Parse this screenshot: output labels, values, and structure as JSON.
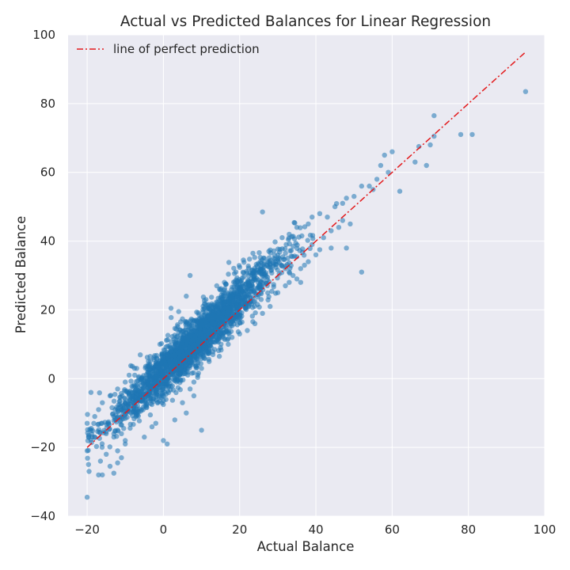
{
  "chart_data": {
    "type": "scatter",
    "title": "Actual vs Predicted Balances for Linear Regression",
    "xlabel": "Actual Balance",
    "ylabel": "Predicted Balance",
    "xlim": [
      -25,
      100
    ],
    "ylim": [
      -40,
      100
    ],
    "x_ticks": [
      -20,
      0,
      20,
      40,
      60,
      80,
      100
    ],
    "y_ticks": [
      -40,
      -20,
      0,
      20,
      40,
      60,
      80,
      100
    ],
    "x_tick_labels": [
      "−20",
      "0",
      "20",
      "40",
      "60",
      "80",
      "100"
    ],
    "y_tick_labels": [
      "−40",
      "−20",
      "0",
      "20",
      "40",
      "60",
      "80",
      "100"
    ],
    "grid": true,
    "background": "#eaeaf2",
    "legend": {
      "placement": "top-left",
      "entries": [
        "line of perfect prediction"
      ]
    },
    "series": [
      {
        "kind": "scatter",
        "color": "#1f77b4",
        "alpha": 0.55,
        "points": [
          [
            -20,
            -34.5
          ],
          [
            -19.5,
            -27
          ],
          [
            -16,
            -28
          ],
          [
            -17,
            -28
          ],
          [
            -14,
            -25.5
          ],
          [
            -13,
            -27.5
          ],
          [
            -12,
            -24.5
          ],
          [
            -11,
            -23
          ],
          [
            -16.5,
            -24
          ],
          [
            -15,
            -22
          ],
          [
            -12,
            -21
          ],
          [
            -10,
            -19
          ],
          [
            -19,
            -4
          ],
          [
            -20,
            -13
          ],
          [
            -18,
            -11
          ],
          [
            -17,
            -9
          ],
          [
            -16,
            -7
          ],
          [
            -14,
            -5
          ],
          [
            -12,
            -3
          ],
          [
            -10,
            -1
          ],
          [
            -9,
            1
          ],
          [
            -7,
            3
          ],
          [
            -20,
            -21
          ],
          [
            -18,
            -17
          ],
          [
            -15,
            -16
          ],
          [
            -10,
            -18
          ],
          [
            -5,
            -17
          ],
          [
            0,
            -18
          ],
          [
            1,
            -19
          ],
          [
            10,
            -15
          ],
          [
            5,
            -7
          ],
          [
            8,
            -5
          ],
          [
            6,
            -10
          ],
          [
            -3,
            -14
          ],
          [
            -2,
            -13
          ],
          [
            3,
            -12
          ],
          [
            -12,
            -15
          ],
          [
            -13,
            -17
          ],
          [
            -11,
            -16
          ],
          [
            2,
            20.5
          ],
          [
            4,
            19.5
          ],
          [
            6,
            24
          ],
          [
            7,
            30
          ],
          [
            11,
            19
          ],
          [
            14,
            27
          ],
          [
            16,
            28
          ],
          [
            19,
            31
          ],
          [
            21,
            34.5
          ],
          [
            26,
            48.5
          ],
          [
            28,
            33
          ],
          [
            30,
            36
          ],
          [
            33,
            42
          ],
          [
            35,
            44
          ],
          [
            38,
            45
          ],
          [
            39,
            47
          ],
          [
            41,
            48
          ],
          [
            43,
            47
          ],
          [
            45,
            50
          ],
          [
            47,
            51
          ],
          [
            48,
            52.5
          ],
          [
            50,
            53
          ],
          [
            52,
            56
          ],
          [
            54,
            56
          ],
          [
            55,
            55
          ],
          [
            56,
            58
          ],
          [
            57,
            62
          ],
          [
            58,
            65
          ],
          [
            59,
            60
          ],
          [
            60,
            66
          ],
          [
            62,
            54.5
          ],
          [
            66,
            63
          ],
          [
            67,
            67.5
          ],
          [
            69,
            62
          ],
          [
            70,
            68
          ],
          [
            71,
            70.5
          ],
          [
            71,
            76.5
          ],
          [
            78,
            71
          ],
          [
            81,
            71
          ],
          [
            95,
            83.5
          ],
          [
            52,
            31
          ],
          [
            48,
            38
          ],
          [
            44,
            38
          ],
          [
            41,
            37.5
          ],
          [
            39,
            39
          ],
          [
            36,
            32
          ],
          [
            33,
            28
          ],
          [
            32,
            27
          ],
          [
            30,
            25
          ],
          [
            28,
            21
          ],
          [
            26,
            19
          ],
          [
            24,
            16
          ],
          [
            22,
            14
          ],
          [
            20,
            13
          ],
          [
            18,
            12
          ],
          [
            17,
            10
          ],
          [
            15,
            9
          ],
          [
            13,
            7
          ],
          [
            12,
            5
          ],
          [
            10,
            3
          ],
          [
            9,
            1
          ],
          [
            8,
            -1
          ],
          [
            7,
            -3
          ],
          [
            -13,
            -11
          ],
          [
            -12,
            -9
          ],
          [
            -11,
            -8
          ],
          [
            -10,
            -6
          ],
          [
            -9,
            -5
          ],
          [
            -8,
            -4
          ],
          [
            -7,
            -3
          ],
          [
            -6,
            -1
          ],
          [
            -5,
            0
          ],
          [
            -4,
            1
          ],
          [
            -3,
            3
          ],
          [
            -2,
            4
          ],
          [
            -1,
            5
          ],
          [
            0,
            6
          ],
          [
            1,
            7
          ],
          [
            2,
            8
          ],
          [
            3,
            9
          ],
          [
            4,
            10
          ],
          [
            5,
            11
          ],
          [
            6,
            12
          ],
          [
            7,
            13
          ],
          [
            8,
            14
          ],
          [
            9,
            15
          ],
          [
            10,
            16
          ],
          [
            11,
            17
          ],
          [
            12,
            18
          ],
          [
            13,
            19
          ],
          [
            14,
            20
          ],
          [
            15,
            21
          ],
          [
            16,
            22
          ],
          [
            17,
            23
          ],
          [
            18,
            24
          ],
          [
            19,
            25
          ],
          [
            20,
            26
          ],
          [
            21,
            27
          ],
          [
            22,
            28
          ],
          [
            23,
            29
          ],
          [
            24,
            30
          ],
          [
            25,
            31
          ],
          [
            26,
            32
          ],
          [
            27,
            33
          ],
          [
            28,
            34
          ],
          [
            29,
            35
          ],
          [
            30,
            34
          ],
          [
            31,
            33
          ],
          [
            32,
            32
          ],
          [
            33,
            31
          ],
          [
            34,
            30
          ],
          [
            35,
            29
          ],
          [
            36,
            28
          ],
          [
            37,
            33
          ],
          [
            38,
            34
          ],
          [
            40,
            36
          ],
          [
            42,
            41
          ],
          [
            44,
            43
          ],
          [
            46,
            44
          ],
          [
            47,
            46
          ],
          [
            49,
            45
          ]
        ]
      },
      {
        "kind": "line",
        "name": "line of perfect prediction",
        "color": "#e31a1c",
        "dash": "dash-dot",
        "x": [
          -20,
          95
        ],
        "y": [
          -20,
          95
        ]
      }
    ]
  }
}
